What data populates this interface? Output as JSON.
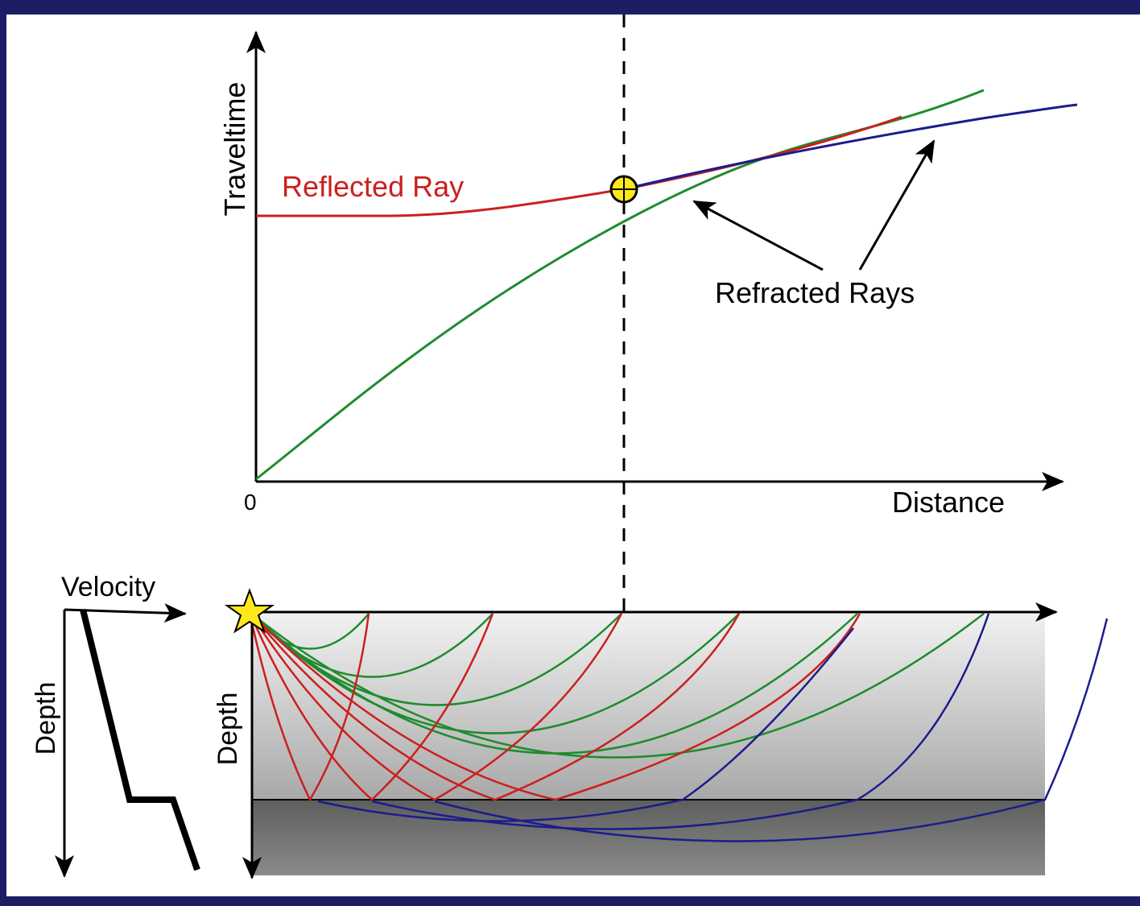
{
  "plot": {
    "y_axis_label": "Traveltime",
    "x_axis_label": "Distance",
    "origin_label": "0",
    "annotations": [
      "Reflected Ray",
      "Refracted Rays"
    ]
  },
  "cross_section": {
    "velocity_profile": {
      "x_label": "Velocity",
      "y_label": "Depth"
    },
    "model": {
      "y_label": "Depth"
    }
  }
}
